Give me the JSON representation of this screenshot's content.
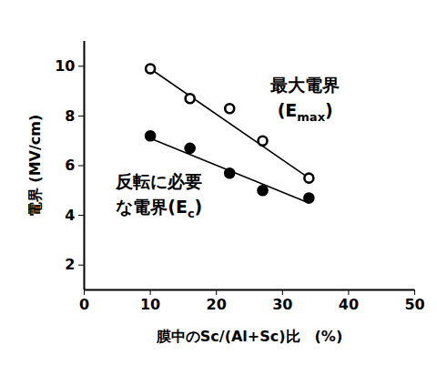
{
  "chart_data": {
    "type": "scatter",
    "xlabel": "膜中のSc/(Al+Sc)比　(%)",
    "ylabel": "電界 (MV/cm)",
    "x": [
      10,
      16,
      22,
      27,
      34
    ],
    "series": [
      {
        "label_lines": [
          [
            {
              "text": "最大電界"
            }
          ],
          [
            {
              "text": "(E"
            },
            {
              "text": "max",
              "sub": true
            },
            {
              "text": ")"
            }
          ]
        ],
        "color": "#000000",
        "marker": "circle_open",
        "values": [
          9.9,
          8.7,
          8.3,
          7.0,
          5.5
        ],
        "fit_x": [
          10,
          34
        ],
        "fit_values": [
          9.9,
          5.5
        ]
      },
      {
        "label_lines": [
          [
            {
              "text": "反転に必要"
            }
          ],
          [
            {
              "text": "な電界(E"
            },
            {
              "text": "c",
              "sub": true
            },
            {
              "text": ")"
            }
          ]
        ],
        "color": "#000000",
        "marker": "circle",
        "values": [
          7.2,
          6.7,
          5.7,
          5.0,
          4.7
        ],
        "fit_x": [
          10,
          34
        ],
        "fit_values": [
          7.1,
          4.5
        ]
      }
    ],
    "xlim": [
      0,
      50
    ],
    "xticks": [
      0,
      10,
      20,
      30,
      40,
      50
    ],
    "ylim": [
      1,
      11
    ],
    "yticks": [
      2,
      4,
      6,
      8,
      10
    ],
    "grid": false
  }
}
